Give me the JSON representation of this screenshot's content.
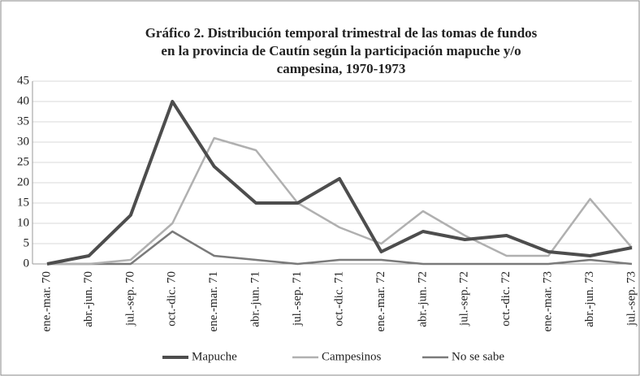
{
  "chart_data": {
    "type": "line",
    "title": [
      "Gráfico 2. Distribución temporal trimestral de las tomas de fundos",
      "en la provincia de Cautín según la participación mapuche y/o",
      "campesina, 1970-1973"
    ],
    "categories": [
      "ene.-mar. 70",
      "abr.-jun. 70",
      "jul.-sep. 70",
      "oct.-dic. 70",
      "ene.-mar. 71",
      "abr.-jun. 71",
      "jul.-sep. 71",
      "oct.-dic. 71",
      "ene.-mar. 72",
      "abr.-jun. 72",
      "jul.-sep. 72",
      "oct.-dic. 72",
      "ene.-mar. 73",
      "abr.-jun. 73",
      "jul.-sep. 73"
    ],
    "series": [
      {
        "name": "Mapuche",
        "color": "#4d4d4d",
        "values": [
          0,
          2,
          12,
          40,
          24,
          15,
          15,
          21,
          3,
          8,
          6,
          7,
          3,
          2,
          4
        ]
      },
      {
        "name": "Campesinos",
        "color": "#b0b0b0",
        "values": [
          0,
          0,
          1,
          10,
          31,
          28,
          15,
          9,
          5,
          13,
          7,
          2,
          2,
          16,
          4
        ]
      },
      {
        "name": "No se sabe",
        "color": "#7a7a7a",
        "values": [
          0,
          0,
          0,
          8,
          2,
          1,
          0,
          1,
          1,
          0,
          0,
          0,
          0,
          1,
          0
        ]
      }
    ],
    "ylim": [
      0,
      45
    ],
    "yticks": [
      0,
      5,
      10,
      15,
      20,
      25,
      30,
      35,
      40,
      45
    ],
    "grid": true,
    "legend": "bottom"
  }
}
